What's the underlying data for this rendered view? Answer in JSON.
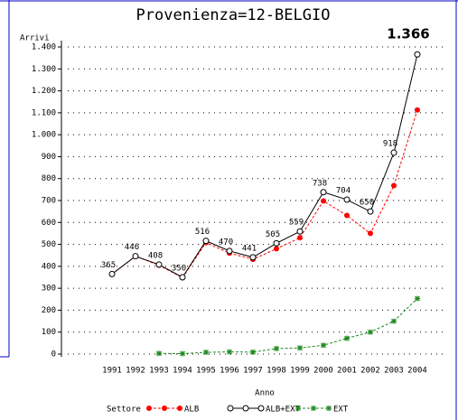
{
  "chart_data": {
    "type": "line",
    "title": "Provenienza=12-BELGIO",
    "y_label": "Arrivi",
    "x_label": "Anno",
    "legend_title": "Settore",
    "categories": [
      "1991",
      "1992",
      "1993",
      "1994",
      "1995",
      "1996",
      "1997",
      "1998",
      "1999",
      "2000",
      "2001",
      "2002",
      "2003",
      "2004"
    ],
    "ylim": [
      0,
      1400
    ],
    "yticks": [
      0,
      100,
      200,
      300,
      400,
      500,
      600,
      700,
      800,
      900,
      {
        "value": 1000,
        "label": "1.000"
      },
      {
        "value": 1100,
        "label": "1.100"
      },
      {
        "value": 1200,
        "label": "1.200"
      },
      {
        "value": 1300,
        "label": "1.300"
      },
      {
        "value": 1400,
        "label": "1.400"
      }
    ],
    "grid": true,
    "series": [
      {
        "name": "ALB",
        "color": "#ff0000",
        "values": [
          365,
          446,
          405,
          348,
          508,
          460,
          432,
          480,
          530,
          698,
          632,
          550,
          768,
          1113
        ]
      },
      {
        "name": "ALB+EXT",
        "color": "#000000",
        "values": [
          365,
          446,
          408,
          350,
          516,
          470,
          441,
          505,
          559,
          738,
          704,
          650,
          918,
          1366
        ],
        "value_labels": [
          "365",
          "446",
          "408",
          "350",
          "516",
          "470",
          "441",
          "505",
          "559",
          "738",
          "704",
          "650",
          "918",
          "1.366"
        ]
      },
      {
        "name": "EXT",
        "color": "#228b22",
        "values": [
          null,
          null,
          3,
          2,
          8,
          10,
          9,
          25,
          28,
          40,
          72,
          100,
          150,
          253
        ]
      }
    ]
  }
}
